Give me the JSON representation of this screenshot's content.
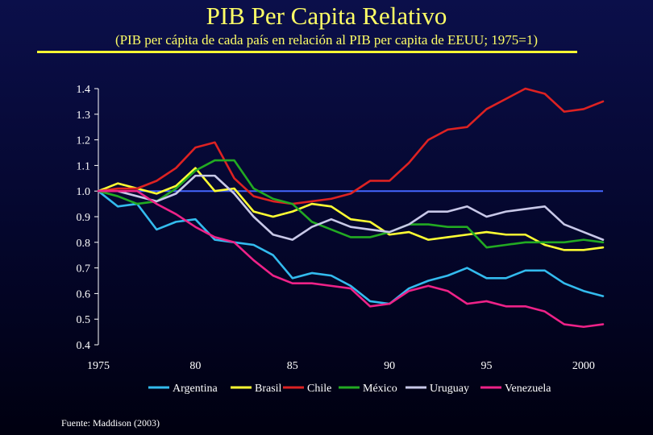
{
  "title": "PIB Per Capita Relativo",
  "subtitle": "(PIB per cápita de cada país en relación al PIB per capita de EEUU; 1975=1)",
  "source": "Fuente: Maddison (2003)",
  "chart_data": {
    "type": "line",
    "title": "PIB Per Capita Relativo",
    "xlabel": "",
    "ylabel": "",
    "xlim": [
      1975,
      2001
    ],
    "ylim": [
      0.4,
      1.4
    ],
    "x_ticks": [
      1975,
      1980,
      1985,
      1990,
      1995,
      2000
    ],
    "x_tick_labels": [
      "1975",
      "80",
      "85",
      "90",
      "95",
      "2000"
    ],
    "y_ticks": [
      0.4,
      0.5,
      0.6,
      0.7,
      0.8,
      0.9,
      1.0,
      1.1,
      1.2,
      1.3,
      1.4
    ],
    "y_tick_labels": [
      "0.4",
      "0.5",
      "0.6",
      "0.7",
      "0.8",
      "0.9",
      "1.0",
      "1.1",
      "1.2",
      "1.3",
      "1.4"
    ],
    "reference_line": 1.0,
    "legend_position": "bottom",
    "x": [
      1975,
      1976,
      1977,
      1978,
      1979,
      1980,
      1981,
      1982,
      1983,
      1984,
      1985,
      1986,
      1987,
      1988,
      1989,
      1990,
      1991,
      1992,
      1993,
      1994,
      1995,
      1996,
      1997,
      1998,
      1999,
      2000,
      2001
    ],
    "series": [
      {
        "name": "Argentina",
        "color": "#33bbee",
        "values": [
          1.0,
          0.94,
          0.95,
          0.85,
          0.88,
          0.89,
          0.81,
          0.8,
          0.79,
          0.75,
          0.66,
          0.68,
          0.67,
          0.63,
          0.57,
          0.56,
          0.62,
          0.65,
          0.67,
          0.7,
          0.66,
          0.66,
          0.69,
          0.69,
          0.64,
          0.61,
          0.59
        ]
      },
      {
        "name": "Brasil",
        "color": "#ffff33",
        "values": [
          1.0,
          1.03,
          1.01,
          0.99,
          1.02,
          1.09,
          1.0,
          1.01,
          0.92,
          0.9,
          0.92,
          0.95,
          0.94,
          0.89,
          0.88,
          0.83,
          0.84,
          0.81,
          0.82,
          0.83,
          0.84,
          0.83,
          0.83,
          0.79,
          0.77,
          0.77,
          0.78
        ]
      },
      {
        "name": "Chile",
        "color": "#dd2222",
        "values": [
          1.0,
          1.01,
          1.01,
          1.04,
          1.09,
          1.17,
          1.19,
          1.05,
          0.98,
          0.96,
          0.95,
          0.96,
          0.97,
          0.99,
          1.04,
          1.04,
          1.11,
          1.2,
          1.24,
          1.25,
          1.32,
          1.36,
          1.4,
          1.38,
          1.31,
          1.32,
          1.35
        ]
      },
      {
        "name": "México",
        "color": "#22aa22",
        "values": [
          1.0,
          0.98,
          0.95,
          0.96,
          1.01,
          1.08,
          1.12,
          1.12,
          1.01,
          0.97,
          0.95,
          0.88,
          0.85,
          0.82,
          0.82,
          0.84,
          0.87,
          0.87,
          0.86,
          0.86,
          0.78,
          0.79,
          0.8,
          0.8,
          0.8,
          0.81,
          0.8
        ]
      },
      {
        "name": "Uruguay",
        "color": "#c8c8e8",
        "values": [
          1.0,
          1.0,
          0.98,
          0.96,
          0.99,
          1.06,
          1.06,
          0.99,
          0.9,
          0.83,
          0.81,
          0.86,
          0.89,
          0.86,
          0.85,
          0.84,
          0.87,
          0.92,
          0.92,
          0.94,
          0.9,
          0.92,
          0.93,
          0.94,
          0.87,
          0.84,
          0.81
        ]
      },
      {
        "name": "Venezuela",
        "color": "#ee2288",
        "values": [
          1.0,
          1.0,
          1.0,
          0.95,
          0.91,
          0.86,
          0.82,
          0.8,
          0.73,
          0.67,
          0.64,
          0.64,
          0.63,
          0.62,
          0.55,
          0.56,
          0.61,
          0.63,
          0.61,
          0.56,
          0.57,
          0.55,
          0.55,
          0.53,
          0.48,
          0.47,
          0.48
        ]
      }
    ]
  }
}
